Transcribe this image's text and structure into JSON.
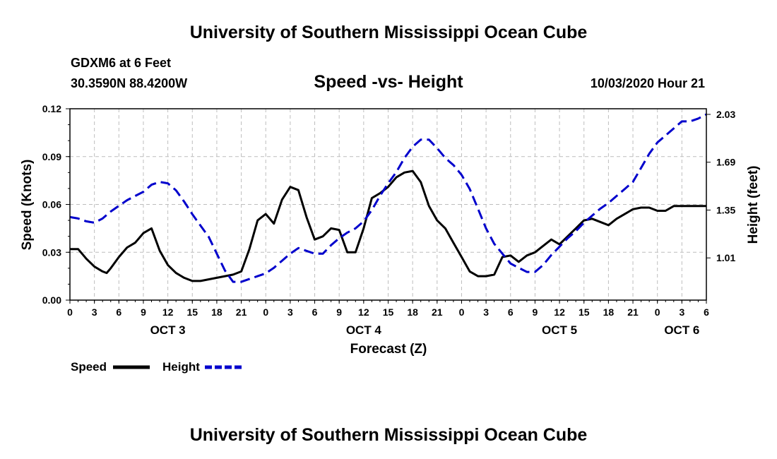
{
  "header": {
    "title_top": "University of Southern Mississippi Ocean Cube",
    "title_bottom": "University of Southern Mississippi Ocean Cube",
    "station": "GDXM6 at 6 Feet",
    "coords": "30.3590N 88.4200W",
    "timestamp": "10/03/2020 Hour 21"
  },
  "chart_data": {
    "type": "line",
    "title": "Speed -vs- Height",
    "xlabel": "Forecast (Z)",
    "ylabel": "Speed (Knots)",
    "ylabel_right": "Height (feet)",
    "x_range_hours": [
      0,
      78
    ],
    "ylim": [
      0,
      0.12
    ],
    "ylim_right": [
      0.71,
      2.07
    ],
    "y_ticks": [
      "0.00",
      "0.03",
      "0.06",
      "0.09",
      "0.12"
    ],
    "y_ticks_right": [
      "1.01",
      "1.35",
      "1.69",
      "2.03"
    ],
    "y_ticks_right_values": [
      1.01,
      1.35,
      1.69,
      2.03
    ],
    "x_tick_labels": [
      "0",
      "3",
      "6",
      "9",
      "12",
      "15",
      "18",
      "21",
      "0",
      "3",
      "6",
      "9",
      "12",
      "15",
      "18",
      "21",
      "0",
      "3",
      "6",
      "9",
      "12",
      "15",
      "18",
      "21",
      "0",
      "3",
      "6"
    ],
    "day_labels": [
      {
        "label": "OCT 3",
        "hour": 12
      },
      {
        "label": "OCT 4",
        "hour": 36
      },
      {
        "label": "OCT 5",
        "hour": 60
      },
      {
        "label": "OCT 6",
        "hour": 75
      }
    ],
    "grid": true,
    "legend_position": "bottom-left",
    "series": [
      {
        "name": "Speed",
        "color": "#000000",
        "dashed": false,
        "axis": "left",
        "x": [
          0,
          1,
          2,
          3,
          4,
          4.5,
          5,
          6,
          7,
          8,
          9,
          10,
          11,
          12,
          13,
          14,
          15,
          16,
          17,
          18,
          19,
          20,
          21,
          22,
          23,
          24,
          25,
          26,
          27,
          28,
          29,
          30,
          31,
          32,
          33,
          34,
          35,
          36,
          37,
          38,
          39,
          40,
          41,
          42,
          43,
          44,
          45,
          46,
          47,
          48,
          49,
          50,
          51,
          52,
          53,
          54,
          55,
          56,
          57,
          58,
          59,
          60,
          61,
          62,
          63,
          64,
          65,
          66,
          67,
          68,
          69,
          70,
          71,
          72,
          73,
          74,
          75,
          76,
          77,
          78
        ],
        "values": [
          0.032,
          0.032,
          0.026,
          0.021,
          0.018,
          0.017,
          0.02,
          0.027,
          0.033,
          0.036,
          0.042,
          0.045,
          0.031,
          0.022,
          0.017,
          0.014,
          0.012,
          0.012,
          0.013,
          0.014,
          0.015,
          0.016,
          0.018,
          0.032,
          0.05,
          0.054,
          0.048,
          0.063,
          0.071,
          0.069,
          0.052,
          0.038,
          0.04,
          0.045,
          0.044,
          0.03,
          0.03,
          0.045,
          0.064,
          0.067,
          0.071,
          0.077,
          0.08,
          0.081,
          0.074,
          0.059,
          0.05,
          0.045,
          0.036,
          0.027,
          0.018,
          0.015,
          0.015,
          0.016,
          0.027,
          0.028,
          0.024,
          0.028,
          0.03,
          0.034,
          0.038,
          0.035,
          0.04,
          0.045,
          0.05,
          0.051,
          0.049,
          0.047,
          0.051,
          0.054,
          0.057,
          0.058,
          0.058,
          0.056,
          0.056,
          0.059,
          0.059,
          0.059,
          0.059,
          0.059
        ]
      },
      {
        "name": "Height",
        "color": "#0000cc",
        "dashed": true,
        "axis": "right",
        "x": [
          0,
          1,
          2,
          3,
          4,
          5,
          6,
          7,
          8,
          9,
          10,
          11,
          12,
          13,
          14,
          15,
          16,
          17,
          18,
          19,
          20,
          21,
          22,
          23,
          24,
          25,
          26,
          27,
          28,
          29,
          30,
          31,
          32,
          33,
          34,
          35,
          36,
          37,
          38,
          39,
          40,
          41,
          42,
          43,
          44,
          45,
          46,
          47,
          48,
          49,
          50,
          51,
          52,
          53,
          54,
          55,
          56,
          57,
          58,
          59,
          60,
          61,
          62,
          63,
          64,
          65,
          66,
          67,
          68,
          69,
          70,
          71,
          72,
          73,
          74,
          75,
          76,
          77,
          78
        ],
        "values": [
          1.3,
          1.29,
          1.27,
          1.26,
          1.29,
          1.34,
          1.38,
          1.42,
          1.45,
          1.48,
          1.53,
          1.55,
          1.54,
          1.49,
          1.41,
          1.32,
          1.24,
          1.16,
          1.04,
          0.92,
          0.84,
          0.84,
          0.86,
          0.88,
          0.9,
          0.94,
          0.99,
          1.04,
          1.08,
          1.06,
          1.04,
          1.04,
          1.1,
          1.15,
          1.19,
          1.22,
          1.27,
          1.35,
          1.45,
          1.54,
          1.62,
          1.72,
          1.8,
          1.85,
          1.85,
          1.79,
          1.72,
          1.67,
          1.6,
          1.5,
          1.36,
          1.22,
          1.11,
          1.04,
          0.97,
          0.94,
          0.91,
          0.91,
          0.96,
          1.03,
          1.09,
          1.15,
          1.2,
          1.26,
          1.31,
          1.36,
          1.4,
          1.45,
          1.5,
          1.55,
          1.65,
          1.75,
          1.83,
          1.88,
          1.93,
          1.98,
          1.98,
          2.0,
          2.03
        ]
      }
    ]
  }
}
